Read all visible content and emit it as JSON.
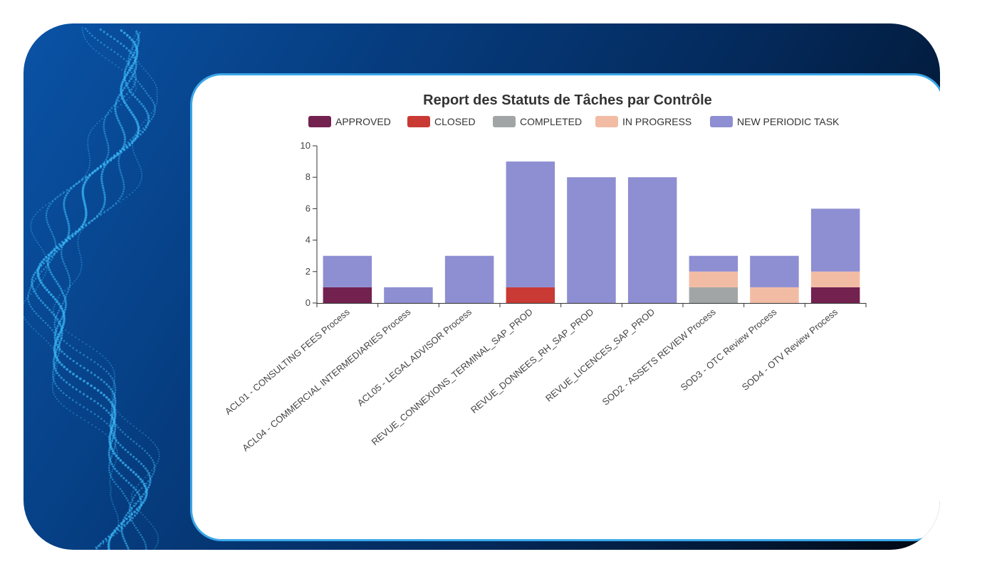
{
  "colors": {
    "frame_start": "#0a53a6",
    "frame_end": "#01070f",
    "card_border": "#3aa6e8",
    "dots": "#3ec0ff"
  },
  "chart_data": {
    "type": "bar",
    "stacked": true,
    "title": "Report des Statuts de Tâches par Contrôle",
    "legend_position": "top",
    "grid": false,
    "ylim": [
      0,
      10
    ],
    "yticks": [
      0,
      2,
      4,
      6,
      8,
      10
    ],
    "categories": [
      "ACL01 - CONSULTING FEES Process",
      "ACL04 - COMMERCIAL INTERMEDIARIES Process",
      "ACL05 - LEGAL ADVISOR Process",
      "REVUE_CONNEXIONS_TERMINAL_SAP_PROD",
      "REVUE_DONNEES_RH_SAP_PROD",
      "REVUE_LICENCES_SAP_PROD",
      "SOD2 - ASSETS REVIEW Process",
      "SOD3 - OTC Review Process",
      "SOD4 - OTV Review Process"
    ],
    "series": [
      {
        "name": "APPROVED",
        "color": "#73224f",
        "values": [
          1,
          0,
          0,
          0,
          0,
          0,
          0,
          0,
          1
        ]
      },
      {
        "name": "CLOSED",
        "color": "#c93a35",
        "values": [
          0,
          0,
          0,
          1,
          0,
          0,
          0,
          0,
          0
        ]
      },
      {
        "name": "COMPLETED",
        "color": "#a2a5a6",
        "values": [
          0,
          0,
          0,
          0,
          0,
          0,
          1,
          0,
          0
        ]
      },
      {
        "name": "IN PROGRESS",
        "color": "#f2bca4",
        "values": [
          0,
          0,
          0,
          0,
          0,
          0,
          1,
          1,
          1
        ]
      },
      {
        "name": "NEW PERIODIC TASK",
        "color": "#8e8ed2",
        "values": [
          2,
          1,
          3,
          8,
          8,
          8,
          1,
          2,
          4
        ]
      }
    ]
  }
}
